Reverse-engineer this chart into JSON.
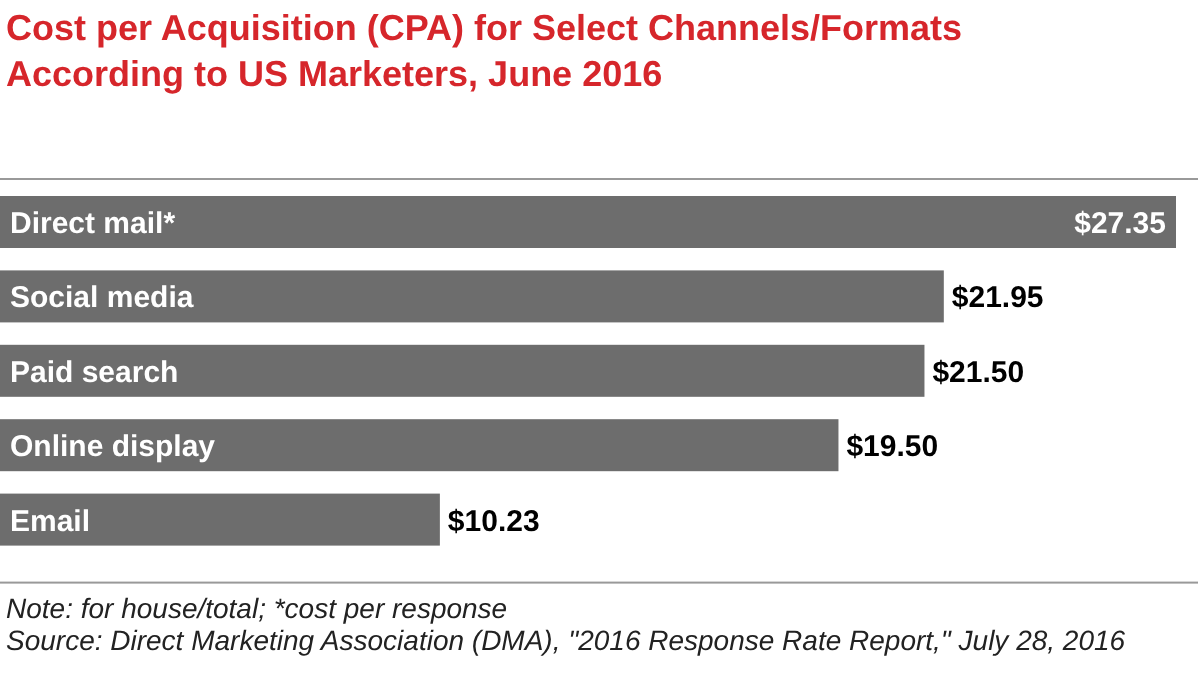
{
  "chart_data": {
    "type": "bar",
    "orientation": "horizontal",
    "title": "Cost per Acquisition (CPA) for Select Channels/Formats According to US Marketers, June 2016",
    "categories": [
      "Direct mail*",
      "Social media",
      "Paid search",
      "Online display",
      "Email"
    ],
    "values": [
      27.35,
      21.95,
      21.5,
      19.5,
      10.23
    ],
    "value_labels": [
      "$27.35",
      "$21.95",
      "$21.50",
      "$19.50",
      "$10.23"
    ],
    "color": "#6d6d6d",
    "annotations": [
      "Note: for house/total; *cost per response",
      "Source: Direct Marketing Association (DMA), \"2016 Response Rate Report,\" July 28, 2016"
    ]
  }
}
